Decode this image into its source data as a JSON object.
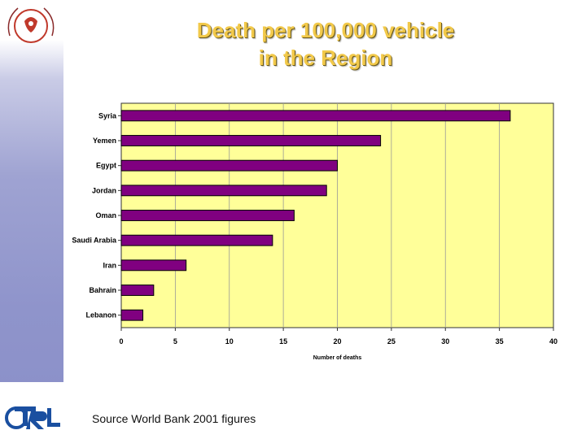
{
  "title": {
    "line1": "Death per 100,000 vehicle",
    "line2": "in the Region"
  },
  "source": "Source World Bank 2001 figures",
  "colors": {
    "plot_background": "#ffff99",
    "bar_fill": "#800080",
    "title_text": "#f2c94a",
    "side_band": "#8f94cb"
  },
  "chart_data": {
    "type": "bar",
    "orientation": "horizontal",
    "categories": [
      "Syria",
      "Yemen",
      "Egypt",
      "Jordan",
      "Oman",
      "Saudi Arabia",
      "Iran",
      "Bahrain",
      "Lebanon"
    ],
    "values": [
      36,
      24,
      20,
      19,
      16,
      14,
      6,
      3,
      2
    ],
    "xlabel": "Number of deaths",
    "ylabel": "",
    "xlim": [
      0,
      40
    ],
    "xticks": [
      0,
      5,
      10,
      15,
      20,
      25,
      30,
      35,
      40
    ],
    "grid": true
  }
}
